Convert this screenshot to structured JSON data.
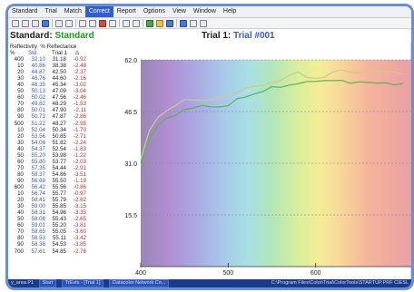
{
  "menu": {
    "items": [
      "Standard",
      "Trial",
      "Match",
      "Correct",
      "Report",
      "Options",
      "View",
      "Window",
      "Help"
    ],
    "active_index": 3
  },
  "header": {
    "standard_label": "Standard:",
    "standard_name": "Standard",
    "trial_label": "Trial 1:",
    "trial_name": "Trial #001"
  },
  "table": {
    "title_left": "Reflectivity",
    "title_right": "% Reflectance",
    "columns": [
      "%",
      "Std.",
      "Trial 1",
      "Δ"
    ],
    "rows": [
      [
        "400",
        "32.10",
        "31.18",
        "-0.92"
      ],
      [
        "10",
        "40.86",
        "38.38",
        "-2.48"
      ],
      [
        "20",
        "44.87",
        "42.50",
        "-2.37"
      ],
      [
        "30",
        "46.76",
        "44.60",
        "-2.16"
      ],
      [
        "40",
        "48.35",
        "45.34",
        "-3.02"
      ],
      [
        "50",
        "50.13",
        "47.09",
        "-3.04"
      ],
      [
        "60",
        "50.02",
        "47.56",
        "-2.46"
      ],
      [
        "70",
        "49.82",
        "48.29",
        "-1.53"
      ],
      [
        "80",
        "50.01",
        "47.90",
        "-2.11"
      ],
      [
        "90",
        "50.73",
        "47.87",
        "-2.86"
      ],
      [
        "500",
        "51.22",
        "48.27",
        "-2.95"
      ],
      [
        "10",
        "52.04",
        "50.34",
        "-1.70"
      ],
      [
        "20",
        "53.56",
        "50.85",
        "-2.71"
      ],
      [
        "30",
        "54.06",
        "51.82",
        "-2.24"
      ],
      [
        "40",
        "54.37",
        "52.54",
        "-1.83"
      ],
      [
        "50",
        "55.20",
        "53.98",
        "-1.22"
      ],
      [
        "60",
        "55.80",
        "53.77",
        "-2.03"
      ],
      [
        "70",
        "57.35",
        "54.44",
        "-2.91"
      ],
      [
        "80",
        "58.37",
        "54.86",
        "-3.51"
      ],
      [
        "90",
        "56.69",
        "55.50",
        "-1.19"
      ],
      [
        "600",
        "56.42",
        "55.56",
        "-0.86"
      ],
      [
        "10",
        "56.74",
        "55.77",
        "-0.97"
      ],
      [
        "20",
        "58.41",
        "55.79",
        "-2.62"
      ],
      [
        "30",
        "59.00",
        "55.85",
        "-3.15"
      ],
      [
        "40",
        "58.31",
        "54.96",
        "-3.35"
      ],
      [
        "50",
        "58.08",
        "55.43",
        "-2.65"
      ],
      [
        "60",
        "59.01",
        "55.20",
        "-3.81"
      ],
      [
        "70",
        "58.65",
        "55.05",
        "-3.60"
      ],
      [
        "80",
        "58.53",
        "55.11",
        "-3.42"
      ],
      [
        "90",
        "58.38",
        "54.53",
        "-3.85"
      ],
      [
        "700",
        "57.61",
        "54.85",
        "-2.76"
      ]
    ]
  },
  "status": {
    "left": "y_area.P1",
    "taskbar_items": [
      "Start",
      "TrEvts - [Trial 1]",
      "Datacolor Network Co..."
    ],
    "right": "C:\\Program Files\\Color\\Trial\\ColorTools\\STARTUP.PRF   CIESL"
  },
  "colors": {
    "standard_line": "#d2c98b",
    "trial_line": "#58b554",
    "accent": "#2f5fd0",
    "standard_text": "#18a018",
    "trial_text": "#3a55d8",
    "delta_text": "#cc2a2a"
  },
  "chart_data": {
    "type": "line",
    "x": [
      400,
      410,
      420,
      430,
      440,
      450,
      460,
      470,
      480,
      490,
      500,
      510,
      520,
      530,
      540,
      550,
      560,
      570,
      580,
      590,
      600,
      610,
      620,
      630,
      640,
      650,
      660,
      670,
      680,
      690,
      700
    ],
    "series": [
      {
        "name": "Std.",
        "values": [
          32.1,
          40.86,
          44.87,
          46.76,
          48.35,
          50.13,
          50.02,
          49.82,
          50.01,
          50.73,
          51.22,
          52.04,
          53.56,
          54.06,
          54.37,
          55.2,
          55.8,
          57.35,
          58.37,
          56.69,
          56.42,
          56.74,
          58.41,
          59.0,
          58.31,
          58.08,
          59.01,
          58.65,
          58.53,
          58.38,
          57.61
        ]
      },
      {
        "name": "Trial 1",
        "values": [
          31.18,
          38.38,
          42.5,
          44.6,
          45.34,
          47.09,
          47.56,
          48.29,
          47.9,
          47.87,
          48.27,
          50.34,
          50.85,
          51.82,
          52.54,
          53.98,
          53.77,
          54.44,
          54.86,
          55.5,
          55.56,
          55.77,
          55.79,
          55.85,
          54.96,
          55.43,
          55.2,
          55.05,
          55.11,
          54.53,
          54.85
        ]
      }
    ],
    "xlim": [
      400,
      700
    ],
    "ylim": [
      0,
      62
    ],
    "y_ticks": [
      "62.0",
      "46.5",
      "31.0",
      "15.5"
    ],
    "x_ticks": [
      "400",
      "500",
      "600"
    ],
    "grid": true
  }
}
